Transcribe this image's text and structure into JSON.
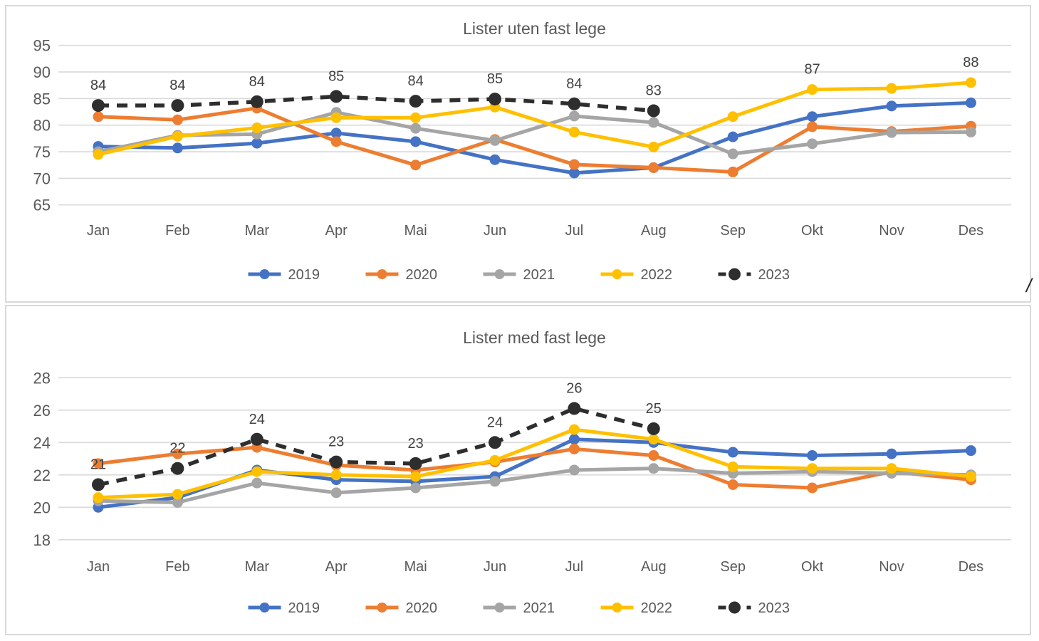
{
  "misc": {
    "slash": "/"
  },
  "colors": {
    "gridline": "#D9D9D9",
    "panel_border": "#D9D9D9",
    "axis_text": "#595959",
    "annotation_text": "#404040",
    "background": "#FFFFFF"
  },
  "chart_data": [
    {
      "type": "line",
      "title": "Lister uten fast lege",
      "categories": [
        "Jan",
        "Feb",
        "Mar",
        "Apr",
        "Mai",
        "Jun",
        "Jul",
        "Aug",
        "Sep",
        "Okt",
        "Nov",
        "Des"
      ],
      "ylabel": "",
      "xlabel": "",
      "ylim": [
        65,
        95
      ],
      "ytick_labels": [
        "95",
        "90",
        "85",
        "80",
        "75",
        "70",
        "65"
      ],
      "yticks": [
        95,
        90,
        85,
        80,
        75,
        70,
        65
      ],
      "grid": true,
      "legend_position": "bottom",
      "series": [
        {
          "name": "2019",
          "color": "#4472C4",
          "style": "solid",
          "values": [
            76.0,
            75.7,
            76.6,
            78.5,
            76.9,
            73.5,
            71.0,
            72.0,
            77.8,
            81.6,
            83.6,
            84.2
          ]
        },
        {
          "name": "2020",
          "color": "#ED7D31",
          "style": "solid",
          "values": [
            81.6,
            81.0,
            83.2,
            76.9,
            72.5,
            77.3,
            72.6,
            72.0,
            71.2,
            79.7,
            78.8,
            79.8
          ]
        },
        {
          "name": "2021",
          "color": "#A5A5A5",
          "style": "solid",
          "values": [
            75.0,
            78.1,
            78.3,
            82.4,
            79.4,
            77.1,
            81.7,
            80.5,
            74.6,
            76.5,
            78.6,
            78.7
          ]
        },
        {
          "name": "2022",
          "color": "#FFC000",
          "style": "solid",
          "values": [
            74.5,
            77.9,
            79.5,
            81.4,
            81.4,
            83.4,
            78.7,
            75.9,
            81.6,
            86.7,
            86.9,
            88.0
          ]
        },
        {
          "name": "2023",
          "color": "#2E2E2E",
          "style": "dashed",
          "values": [
            83.7,
            83.7,
            84.4,
            85.4,
            84.5,
            84.9,
            84.0,
            82.7,
            null,
            null,
            null,
            null
          ]
        }
      ],
      "annotations": [
        {
          "series": "2023",
          "index": 0,
          "text": "84"
        },
        {
          "series": "2023",
          "index": 1,
          "text": "84"
        },
        {
          "series": "2023",
          "index": 2,
          "text": "84"
        },
        {
          "series": "2023",
          "index": 3,
          "text": "85"
        },
        {
          "series": "2023",
          "index": 4,
          "text": "84"
        },
        {
          "series": "2023",
          "index": 5,
          "text": "85"
        },
        {
          "series": "2023",
          "index": 6,
          "text": "84"
        },
        {
          "series": "2023",
          "index": 7,
          "text": "83"
        },
        {
          "series": "2022",
          "index": 9,
          "text": "87"
        },
        {
          "series": "2022",
          "index": 11,
          "text": "88"
        }
      ]
    },
    {
      "type": "line",
      "title": "Lister med fast lege",
      "categories": [
        "Jan",
        "Feb",
        "Mar",
        "Apr",
        "Mai",
        "Jun",
        "Jul",
        "Aug",
        "Sep",
        "Okt",
        "Nov",
        "Des"
      ],
      "ylabel": "",
      "xlabel": "",
      "ylim": [
        18,
        28
      ],
      "ytick_labels": [
        "28",
        "26",
        "24",
        "22",
        "20",
        "18"
      ],
      "yticks": [
        28,
        26,
        24,
        22,
        20,
        18
      ],
      "grid": true,
      "legend_position": "bottom",
      "series": [
        {
          "name": "2019",
          "color": "#4472C4",
          "style": "solid",
          "values": [
            20.0,
            20.6,
            22.3,
            21.7,
            21.6,
            21.9,
            24.2,
            24.0,
            23.4,
            23.2,
            23.3,
            23.5
          ]
        },
        {
          "name": "2020",
          "color": "#ED7D31",
          "style": "solid",
          "values": [
            22.7,
            23.3,
            23.7,
            22.6,
            22.3,
            22.8,
            23.6,
            23.2,
            21.4,
            21.2,
            22.2,
            21.7
          ]
        },
        {
          "name": "2021",
          "color": "#A5A5A5",
          "style": "solid",
          "values": [
            20.4,
            20.3,
            21.5,
            20.9,
            21.2,
            21.6,
            22.3,
            22.4,
            22.1,
            22.2,
            22.1,
            22.0
          ]
        },
        {
          "name": "2022",
          "color": "#FFC000",
          "style": "solid",
          "values": [
            20.6,
            20.8,
            22.2,
            22.0,
            21.9,
            22.9,
            24.8,
            24.2,
            22.5,
            22.4,
            22.4,
            21.9
          ]
        },
        {
          "name": "2023",
          "color": "#2E2E2E",
          "style": "dashed",
          "values": [
            21.4,
            22.4,
            24.2,
            22.8,
            22.7,
            24.0,
            26.1,
            24.85,
            null,
            null,
            null,
            null
          ]
        }
      ],
      "annotations": [
        {
          "series": "2023",
          "index": 0,
          "text": "21"
        },
        {
          "series": "2023",
          "index": 1,
          "text": "22"
        },
        {
          "series": "2023",
          "index": 2,
          "text": "24"
        },
        {
          "series": "2023",
          "index": 3,
          "text": "23"
        },
        {
          "series": "2023",
          "index": 4,
          "text": "23"
        },
        {
          "series": "2023",
          "index": 5,
          "text": "24"
        },
        {
          "series": "2023",
          "index": 6,
          "text": "26"
        },
        {
          "series": "2023",
          "index": 7,
          "text": "25"
        }
      ]
    }
  ]
}
